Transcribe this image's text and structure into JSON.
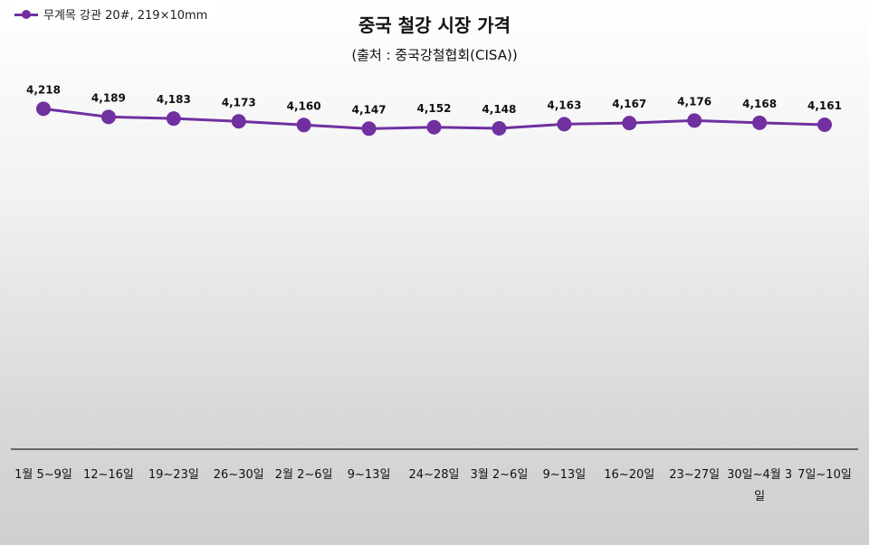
{
  "chart_data": {
    "type": "line",
    "title": "중국 철강 시장 가격",
    "subtitle": "(출처 : 중국강철협회(CISA))",
    "categories": [
      "1월 5~9일",
      "12~16일",
      "19~23일",
      "26~30일",
      "2월 2~6일",
      "9~13일",
      "24~28일",
      "3월 2~6일",
      "9~13일",
      "16~20일",
      "23~27일",
      "30일~4월 3일",
      "7일~10일"
    ],
    "series": [
      {
        "name": "무계목 강관 20#, 219×10mm",
        "values": [
          4218,
          4189,
          4183,
          4173,
          4160,
          4147,
          4152,
          4148,
          4163,
          4167,
          4176,
          4168,
          4161
        ],
        "data_labels": [
          "4,218",
          "4,189",
          "4,183",
          "4,173",
          "4,160",
          "4,147",
          "4,152",
          "4,148",
          "4,163",
          "4,167",
          "4,176",
          "4,168",
          "4,161"
        ],
        "color": "#7030A0"
      }
    ],
    "ylim": [
      3000,
      4300
    ],
    "grid": false,
    "legend_position": "top-left",
    "xlabel": "",
    "ylabel": ""
  }
}
